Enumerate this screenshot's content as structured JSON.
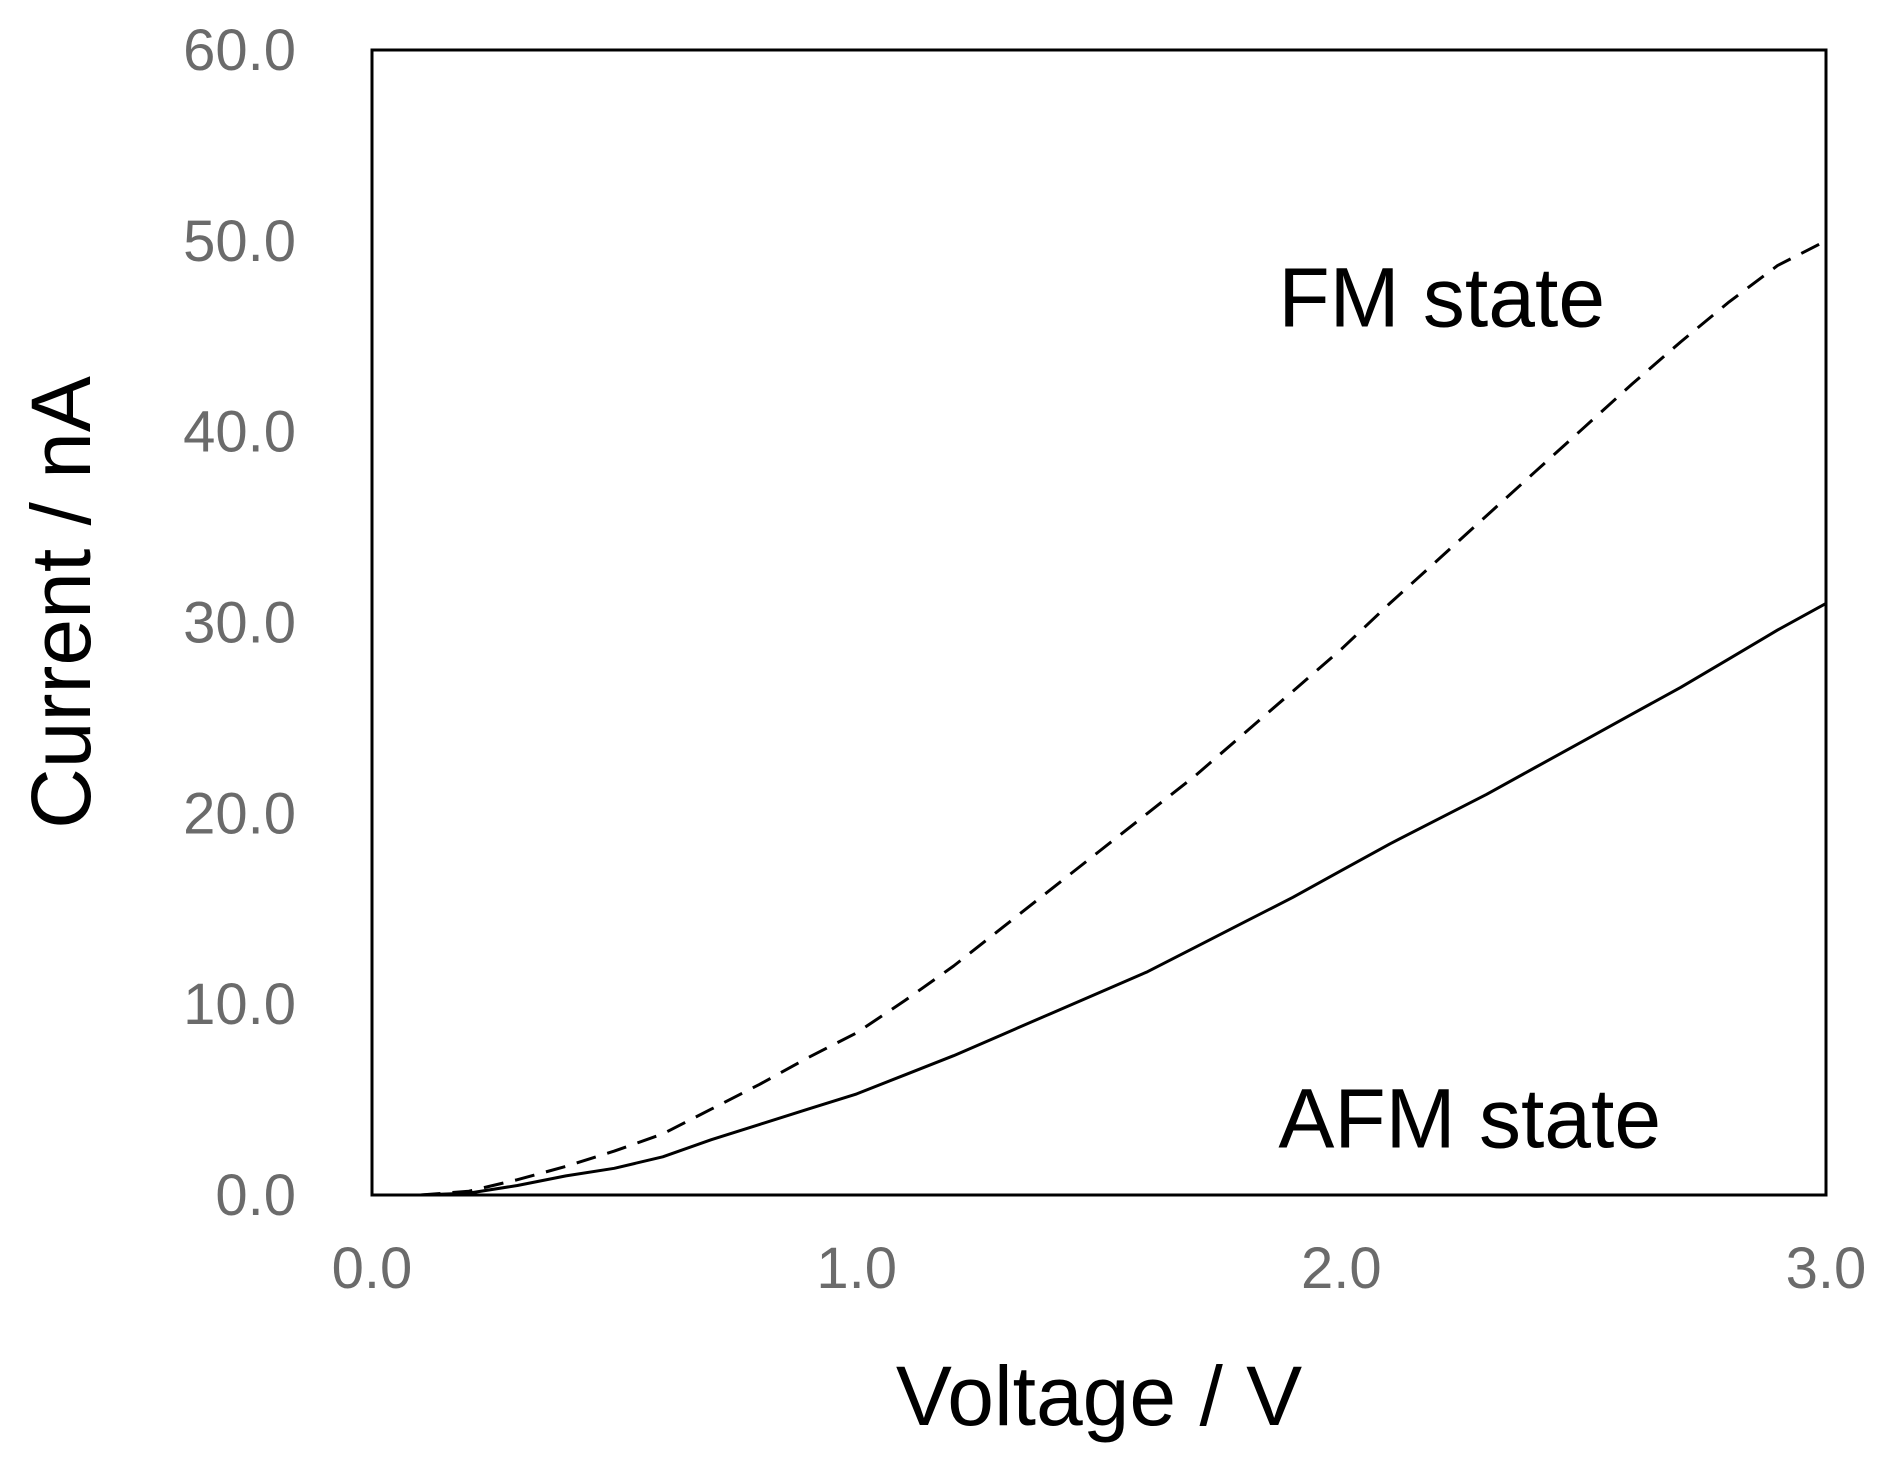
{
  "chart_data": {
    "type": "line",
    "title": "",
    "xlabel": "Voltage  / V",
    "ylabel": "Current  / nA",
    "xlim": [
      0.0,
      3.0
    ],
    "ylim": [
      0.0,
      60.0
    ],
    "x_ticks": [
      "0.0",
      "1.0",
      "2.0",
      "3.0"
    ],
    "y_ticks": [
      "0.0",
      "10.0",
      "20.0",
      "30.0",
      "40.0",
      "50.0",
      "60.0"
    ],
    "grid": false,
    "legend": "none",
    "annotations": [
      {
        "text": "FM state",
        "x": 1.87,
        "y": 45.5
      },
      {
        "text": "AFM state",
        "x": 1.87,
        "y": 2.5
      }
    ],
    "series": [
      {
        "style": "dashed",
        "color": "#000000",
        "x": [
          0.1,
          0.2,
          0.3,
          0.4,
          0.5,
          0.6,
          0.7,
          0.8,
          0.9,
          1.0,
          1.1,
          1.2,
          1.3,
          1.4,
          1.5,
          1.6,
          1.7,
          1.8,
          1.9,
          2.0,
          2.1,
          2.2,
          2.3,
          2.4,
          2.5,
          2.6,
          2.7,
          2.8,
          2.9,
          3.0
        ],
        "y": [
          0.0,
          0.2,
          0.8,
          1.5,
          2.3,
          3.2,
          4.5,
          5.8,
          7.2,
          8.5,
          10.2,
          12.0,
          14.0,
          16.0,
          18.0,
          20.0,
          22.0,
          24.2,
          26.4,
          28.6,
          31.0,
          33.3,
          35.6,
          37.9,
          40.2,
          42.5,
          44.7,
          46.8,
          48.7,
          50.0
        ]
      },
      {
        "style": "solid",
        "color": "#000000",
        "x": [
          0.1,
          0.2,
          0.3,
          0.4,
          0.5,
          0.6,
          0.7,
          0.8,
          0.9,
          1.0,
          1.1,
          1.2,
          1.3,
          1.4,
          1.5,
          1.6,
          1.7,
          1.8,
          1.9,
          2.0,
          2.1,
          2.2,
          2.3,
          2.4,
          2.5,
          2.6,
          2.7,
          2.8,
          2.9,
          3.0
        ],
        "y": [
          0.0,
          0.1,
          0.5,
          1.0,
          1.4,
          2.0,
          2.9,
          3.7,
          4.5,
          5.3,
          6.3,
          7.3,
          8.4,
          9.5,
          10.6,
          11.7,
          13.0,
          14.3,
          15.6,
          17.0,
          18.4,
          19.7,
          21.0,
          22.4,
          23.8,
          25.2,
          26.6,
          28.1,
          29.6,
          31.0
        ]
      }
    ]
  }
}
